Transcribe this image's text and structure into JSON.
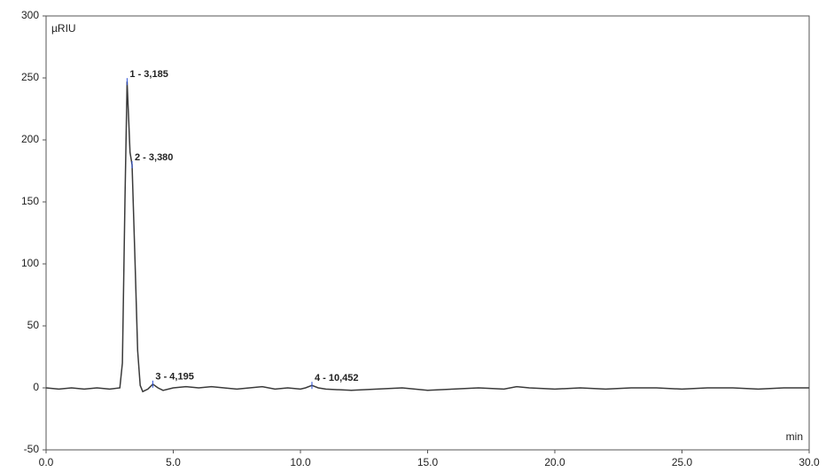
{
  "chart_data": {
    "type": "line",
    "y_axis_label": "µRIU",
    "x_axis_label": "min",
    "color": "#3a3a3a",
    "x": [
      0,
      0.5,
      1,
      1.5,
      2,
      2.5,
      2.9,
      3.0,
      3.1,
      3.185,
      3.25,
      3.3,
      3.38,
      3.5,
      3.6,
      3.7,
      3.8,
      4.0,
      4.195,
      4.4,
      4.6,
      5,
      5.5,
      6,
      6.5,
      7,
      7.5,
      8,
      8.5,
      9,
      9.5,
      10,
      10.2,
      10.452,
      10.7,
      11,
      12,
      13,
      14,
      15,
      16,
      17,
      18,
      18.5,
      19,
      20,
      21,
      22,
      23,
      24,
      25,
      26,
      27,
      28,
      29,
      30
    ],
    "values": [
      0,
      -1,
      0,
      -1,
      0,
      -1,
      0,
      20,
      150,
      247,
      215,
      190,
      180,
      100,
      30,
      2,
      -3,
      -1,
      3,
      0,
      -2,
      0,
      1,
      0,
      1,
      0,
      -1,
      0,
      1,
      -1,
      0,
      -1,
      0,
      2,
      0,
      -1,
      -2,
      -1,
      0,
      -2,
      -1,
      0,
      -1,
      1,
      0,
      -1,
      0,
      -1,
      0,
      0,
      -1,
      0,
      0,
      -1,
      0,
      0
    ],
    "annotations": [
      {
        "text": "1 - 3,185",
        "x": 3.185,
        "y": 247
      },
      {
        "text": "2 - 3,380",
        "x": 3.38,
        "y": 180
      },
      {
        "text": "3 - 4,195",
        "x": 4.195,
        "y": 3
      },
      {
        "text": "4 - 10,452",
        "x": 10.452,
        "y": 2
      }
    ],
    "xlim": [
      0,
      30
    ],
    "ylim": [
      -50,
      300
    ],
    "xticks": [
      {
        "value": 0,
        "label": "0.0"
      },
      {
        "value": 5,
        "label": "5.0"
      },
      {
        "value": 10,
        "label": "10.0"
      },
      {
        "value": 15,
        "label": "15.0"
      },
      {
        "value": 20,
        "label": "20.0"
      },
      {
        "value": 25,
        "label": "25.0"
      },
      {
        "value": 30,
        "label": "30.0"
      }
    ],
    "yticks": [
      -50,
      0,
      50,
      100,
      150,
      200,
      250,
      300
    ],
    "grid": false
  }
}
